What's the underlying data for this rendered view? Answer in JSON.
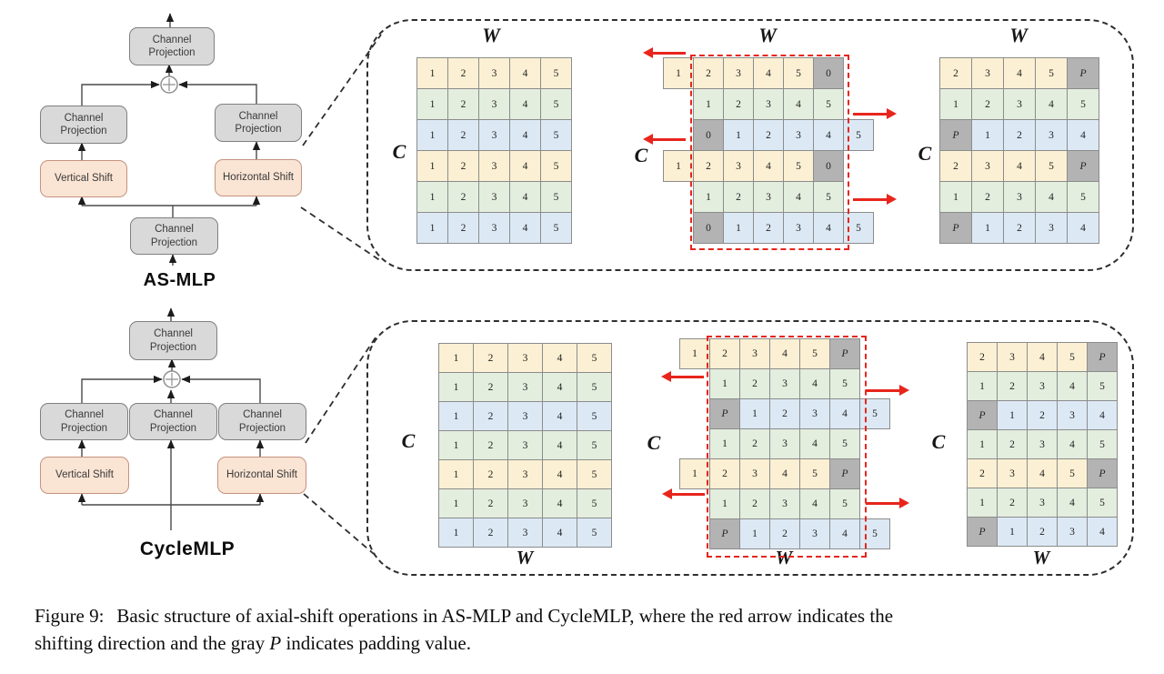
{
  "colors": {
    "yellow": "#FBF0D3",
    "green": "#E3EEDE",
    "blue": "#DCE9F5",
    "pad": "#B3B3B3",
    "cell_border": "#8C8C8C",
    "box_fill": "#D9D9D9",
    "box_border": "#7F7F7F",
    "shift_fill": "#FAE4D3",
    "shift_border": "#C49380",
    "red": "#E8251C",
    "line": "#4A4A4A",
    "dash": "#2E2E2E",
    "text": "#222222"
  },
  "asmlp": {
    "title": "AS-MLP",
    "top_box": "Channel Projection",
    "left_box": "Channel Projection",
    "right_box": "Channel Projection",
    "bottom_box": "Channel Projection",
    "vertical_shift": "Vertical Shift",
    "horizontal_shift": "Horizontal Shift"
  },
  "cyclemlp": {
    "title": "CycleMLP",
    "top_box": "Channel Projection",
    "left_box": "Channel Projection",
    "middle_box": "Channel Projection",
    "right_box": "Channel Projection",
    "vertical_shift": "Vertical Shift",
    "horizontal_shift": "Horizontal Shift"
  },
  "panel_top": {
    "w_label": "W",
    "c_label": "C",
    "arrows": [
      "left",
      "right",
      "left",
      "right"
    ],
    "grids": [
      {
        "name": "input-feature",
        "rows": [
          {
            "color": "yellow",
            "offset": 0,
            "cells": [
              "1",
              "2",
              "3",
              "4",
              "5"
            ]
          },
          {
            "color": "green",
            "offset": 0,
            "cells": [
              "1",
              "2",
              "3",
              "4",
              "5"
            ]
          },
          {
            "color": "blue",
            "offset": 0,
            "cells": [
              "1",
              "2",
              "3",
              "4",
              "5"
            ]
          },
          {
            "color": "yellow",
            "offset": 0,
            "cells": [
              "1",
              "2",
              "3",
              "4",
              "5"
            ]
          },
          {
            "color": "green",
            "offset": 0,
            "cells": [
              "1",
              "2",
              "3",
              "4",
              "5"
            ]
          },
          {
            "color": "blue",
            "offset": 0,
            "cells": [
              "1",
              "2",
              "3",
              "4",
              "5"
            ]
          }
        ]
      },
      {
        "name": "shifting",
        "rows": [
          {
            "color": "yellow",
            "offset": -1,
            "cells": [
              "1",
              "2",
              "3",
              "4",
              "5",
              {
                "v": "0",
                "pad": true
              }
            ]
          },
          {
            "color": "green",
            "offset": 0,
            "cells": [
              "1",
              "2",
              "3",
              "4",
              "5"
            ]
          },
          {
            "color": "blue",
            "offset": 0,
            "cells": [
              {
                "v": "0",
                "pad": true
              },
              "1",
              "2",
              "3",
              "4",
              "5"
            ]
          },
          {
            "color": "yellow",
            "offset": -1,
            "cells": [
              "1",
              "2",
              "3",
              "4",
              "5",
              {
                "v": "0",
                "pad": true
              }
            ]
          },
          {
            "color": "green",
            "offset": 0,
            "cells": [
              "1",
              "2",
              "3",
              "4",
              "5"
            ]
          },
          {
            "color": "blue",
            "offset": 0,
            "cells": [
              {
                "v": "0",
                "pad": true
              },
              "1",
              "2",
              "3",
              "4",
              "5"
            ]
          }
        ]
      },
      {
        "name": "output-feature",
        "rows": [
          {
            "color": "yellow",
            "offset": 0,
            "cells": [
              "2",
              "3",
              "4",
              "5",
              {
                "v": "P",
                "pad": true
              }
            ]
          },
          {
            "color": "green",
            "offset": 0,
            "cells": [
              "1",
              "2",
              "3",
              "4",
              "5"
            ]
          },
          {
            "color": "blue",
            "offset": 0,
            "cells": [
              {
                "v": "P",
                "pad": true
              },
              "1",
              "2",
              "3",
              "4"
            ]
          },
          {
            "color": "yellow",
            "offset": 0,
            "cells": [
              "2",
              "3",
              "4",
              "5",
              {
                "v": "P",
                "pad": true
              }
            ]
          },
          {
            "color": "green",
            "offset": 0,
            "cells": [
              "1",
              "2",
              "3",
              "4",
              "5"
            ]
          },
          {
            "color": "blue",
            "offset": 0,
            "cells": [
              {
                "v": "P",
                "pad": true
              },
              "1",
              "2",
              "3",
              "4"
            ]
          }
        ]
      }
    ]
  },
  "panel_bottom": {
    "w_label": "W",
    "c_label": "C",
    "arrows": [
      "left",
      "right",
      "left",
      "right"
    ],
    "grids": [
      {
        "name": "input-feature",
        "rows": [
          {
            "color": "yellow",
            "offset": 0,
            "cells": [
              "1",
              "2",
              "3",
              "4",
              "5"
            ]
          },
          {
            "color": "green",
            "offset": 0,
            "cells": [
              "1",
              "2",
              "3",
              "4",
              "5"
            ]
          },
          {
            "color": "blue",
            "offset": 0,
            "cells": [
              "1",
              "2",
              "3",
              "4",
              "5"
            ]
          },
          {
            "color": "green",
            "offset": 0,
            "cells": [
              "1",
              "2",
              "3",
              "4",
              "5"
            ]
          },
          {
            "color": "yellow",
            "offset": 0,
            "cells": [
              "1",
              "2",
              "3",
              "4",
              "5"
            ]
          },
          {
            "color": "green",
            "offset": 0,
            "cells": [
              "1",
              "2",
              "3",
              "4",
              "5"
            ]
          },
          {
            "color": "blue",
            "offset": 0,
            "cells": [
              "1",
              "2",
              "3",
              "4",
              "5"
            ]
          }
        ]
      },
      {
        "name": "shifting",
        "rows": [
          {
            "color": "yellow",
            "offset": -1,
            "cells": [
              "1",
              "2",
              "3",
              "4",
              "5",
              {
                "v": "P",
                "pad": true
              }
            ]
          },
          {
            "color": "green",
            "offset": 0,
            "cells": [
              "1",
              "2",
              "3",
              "4",
              "5"
            ]
          },
          {
            "color": "blue",
            "offset": 0,
            "cells": [
              {
                "v": "P",
                "pad": true
              },
              "1",
              "2",
              "3",
              "4",
              "5"
            ]
          },
          {
            "color": "green",
            "offset": 0,
            "cells": [
              "1",
              "2",
              "3",
              "4",
              "5"
            ]
          },
          {
            "color": "yellow",
            "offset": -1,
            "cells": [
              "1",
              "2",
              "3",
              "4",
              "5",
              {
                "v": "P",
                "pad": true
              }
            ]
          },
          {
            "color": "green",
            "offset": 0,
            "cells": [
              "1",
              "2",
              "3",
              "4",
              "5"
            ]
          },
          {
            "color": "blue",
            "offset": 0,
            "cells": [
              {
                "v": "P",
                "pad": true
              },
              "1",
              "2",
              "3",
              "4",
              "5"
            ]
          }
        ]
      },
      {
        "name": "output-feature",
        "rows": [
          {
            "color": "yellow",
            "offset": 0,
            "cells": [
              "2",
              "3",
              "4",
              "5",
              {
                "v": "P",
                "pad": true
              }
            ]
          },
          {
            "color": "green",
            "offset": 0,
            "cells": [
              "1",
              "2",
              "3",
              "4",
              "5"
            ]
          },
          {
            "color": "blue",
            "offset": 0,
            "cells": [
              {
                "v": "P",
                "pad": true
              },
              "1",
              "2",
              "3",
              "4"
            ]
          },
          {
            "color": "green",
            "offset": 0,
            "cells": [
              "1",
              "2",
              "3",
              "4",
              "5"
            ]
          },
          {
            "color": "yellow",
            "offset": 0,
            "cells": [
              "2",
              "3",
              "4",
              "5",
              {
                "v": "P",
                "pad": true
              }
            ]
          },
          {
            "color": "green",
            "offset": 0,
            "cells": [
              "1",
              "2",
              "3",
              "4",
              "5"
            ]
          },
          {
            "color": "blue",
            "offset": 0,
            "cells": [
              {
                "v": "P",
                "pad": true
              },
              "1",
              "2",
              "3",
              "4"
            ]
          }
        ]
      }
    ]
  },
  "caption": {
    "label": "Figure 9:",
    "line1": "Basic structure of axial-shift operations in AS-MLP and CycleMLP, where the red arrow indicates the",
    "line2_pre": "shifting direction and the gray ",
    "padding_symbol": "P",
    "line2_post": " indicates padding value."
  }
}
